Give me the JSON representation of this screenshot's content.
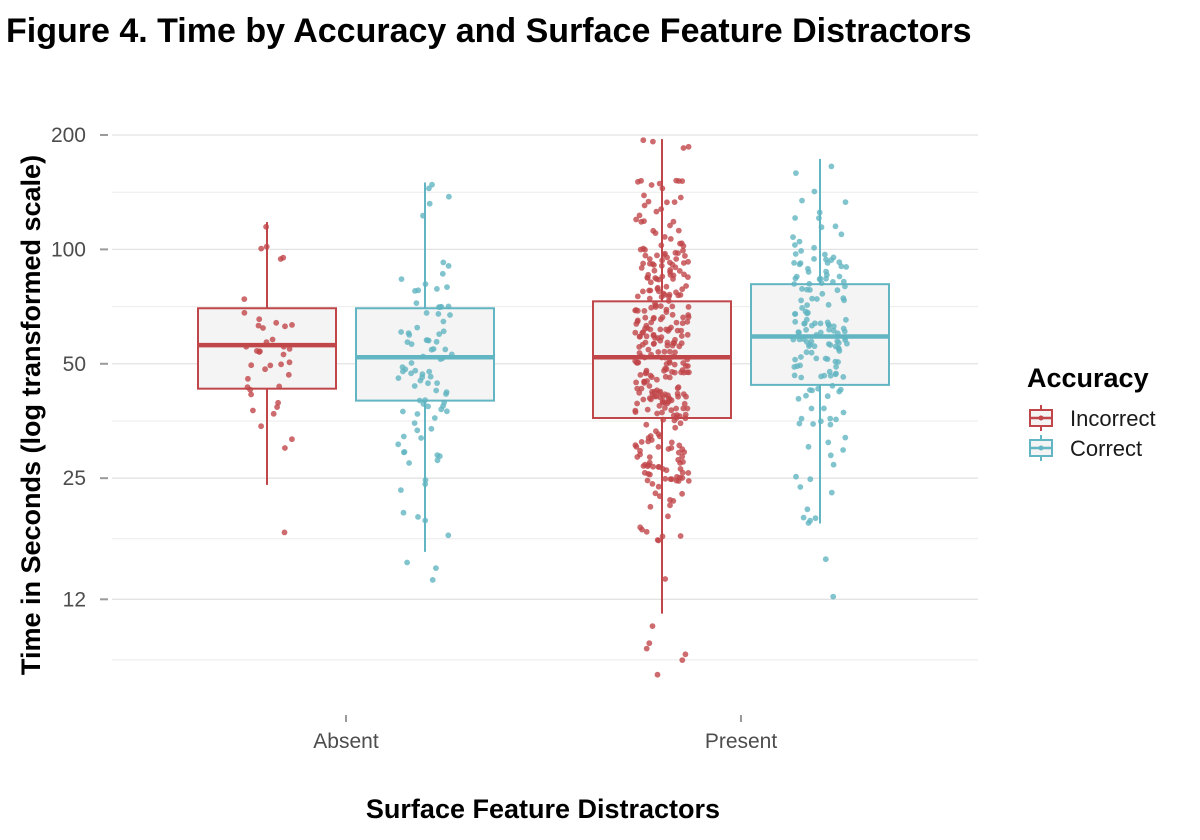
{
  "chart_data": {
    "type": "box",
    "title": "Figure 4. Time by Accuracy and Surface Feature Distractors",
    "xlabel": "Surface Feature Distractors",
    "ylabel": "Time in Seconds (log transformed scale)",
    "y_scale": "log",
    "yticks": [
      12,
      25,
      50,
      100,
      200
    ],
    "ylim": [
      7.4,
      245
    ],
    "grid": "horizontal",
    "categories": [
      "Absent",
      "Present"
    ],
    "legend": {
      "title": "Accuracy",
      "position": "right"
    },
    "series": [
      {
        "name": "Incorrect",
        "color": "#C0464A",
        "boxes": [
          {
            "category": "Absent",
            "whisker_low": 24,
            "q1": 43,
            "median": 56,
            "q3": 70,
            "whisker_high": 118,
            "n_points": 40,
            "outliers": [
              18
            ]
          },
          {
            "category": "Present",
            "whisker_low": 11,
            "q1": 36,
            "median": 52,
            "q3": 73,
            "whisker_high": 195,
            "n_points": 340,
            "outliers": [
              9.2,
              8.9,
              8.6,
              8.3,
              7.6,
              10.2
            ]
          }
        ]
      },
      {
        "name": "Correct",
        "color": "#62B5C2",
        "boxes": [
          {
            "category": "Absent",
            "whisker_low": 16,
            "q1": 40,
            "median": 52,
            "q3": 70,
            "whisker_high": 150,
            "n_points": 90,
            "outliers": [
              14.5,
              13.5,
              15.0
            ]
          },
          {
            "category": "Present",
            "whisker_low": 19,
            "q1": 44,
            "median": 59,
            "q3": 81,
            "whisker_high": 173,
            "n_points": 160,
            "outliers": [
              12.2,
              15.3
            ]
          }
        ]
      }
    ]
  }
}
